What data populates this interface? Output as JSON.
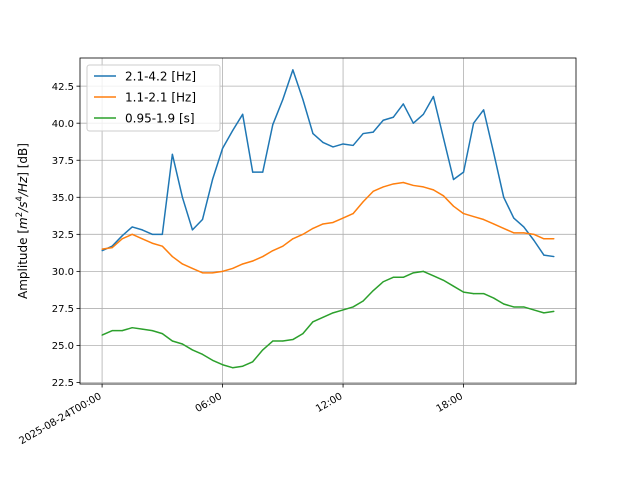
{
  "chart_data": {
    "type": "line",
    "title": "",
    "xlabel": "",
    "ylabel": "Amplitude [m²/s⁴/Hz] [dB]",
    "ylabel_parts": {
      "base": "Amplitude [",
      "m": "m",
      "sup1": "2",
      "s": "/s",
      "sup2": "4",
      "hz": "/Hz",
      "tail": "] [dB]"
    },
    "x_hours": [
      0,
      0.5,
      1,
      1.5,
      2,
      2.5,
      3,
      3.5,
      4,
      4.5,
      5,
      5.5,
      6,
      6.5,
      7,
      7.5,
      8,
      8.5,
      9,
      9.5,
      10,
      10.5,
      11,
      11.5,
      12,
      12.5,
      13,
      13.5,
      14,
      14.5,
      15,
      15.5,
      16,
      16.5,
      17,
      17.5,
      18,
      18.5,
      19,
      19.5,
      20,
      20.5,
      21,
      21.5,
      22,
      22.5
    ],
    "series": [
      {
        "name": "2.1-4.2 [Hz]",
        "color": "#1f77b4",
        "values": [
          31.4,
          31.7,
          32.4,
          33.0,
          32.8,
          32.5,
          32.5,
          37.9,
          35.0,
          32.8,
          33.5,
          36.2,
          38.3,
          39.5,
          40.6,
          36.7,
          36.7,
          39.9,
          41.6,
          43.6,
          41.6,
          39.3,
          38.7,
          38.4,
          38.6,
          38.5,
          39.3,
          39.4,
          40.2,
          40.4,
          41.3,
          40.0,
          40.6,
          41.8,
          39.0,
          36.2,
          36.7,
          40.0,
          40.9,
          38.0,
          35.0,
          33.6,
          33.0,
          32.1,
          31.1,
          31.0
        ]
      },
      {
        "name": "1.1-2.1 [Hz]",
        "color": "#ff7f0e",
        "values": [
          31.5,
          31.6,
          32.2,
          32.5,
          32.2,
          31.9,
          31.7,
          31.0,
          30.5,
          30.2,
          29.9,
          29.9,
          30.0,
          30.2,
          30.5,
          30.7,
          31.0,
          31.4,
          31.7,
          32.2,
          32.5,
          32.9,
          33.2,
          33.3,
          33.6,
          33.9,
          34.7,
          35.4,
          35.7,
          35.9,
          36.0,
          35.8,
          35.7,
          35.5,
          35.1,
          34.4,
          33.9,
          33.7,
          33.5,
          33.2,
          32.9,
          32.6,
          32.6,
          32.5,
          32.2,
          32.2
        ]
      },
      {
        "name": "0.95-1.9 [s]",
        "color": "#2ca02c",
        "values": [
          25.7,
          26.0,
          26.0,
          26.2,
          26.1,
          26.0,
          25.8,
          25.3,
          25.1,
          24.7,
          24.4,
          24.0,
          23.7,
          23.5,
          23.6,
          23.9,
          24.7,
          25.3,
          25.3,
          25.4,
          25.8,
          26.6,
          26.9,
          27.2,
          27.4,
          27.6,
          28.0,
          28.7,
          29.3,
          29.6,
          29.6,
          29.9,
          30.0,
          29.7,
          29.4,
          29.0,
          28.6,
          28.5,
          28.5,
          28.2,
          27.8,
          27.6,
          27.6,
          27.4,
          27.2,
          27.3
        ]
      }
    ],
    "xlim_hours": [
      -1.1,
      23.6
    ],
    "ylim": [
      22.4,
      44.4
    ],
    "x_ticks": [
      {
        "hours": 0,
        "label": "2025-08-24T00:00"
      },
      {
        "hours": 6,
        "label": "06:00"
      },
      {
        "hours": 12,
        "label": "12:00"
      },
      {
        "hours": 18,
        "label": "18:00"
      }
    ],
    "y_ticks": [
      {
        "value": 22.5,
        "label": "22.5"
      },
      {
        "value": 25.0,
        "label": "25.0"
      },
      {
        "value": 27.5,
        "label": "27.5"
      },
      {
        "value": 30.0,
        "label": "30.0"
      },
      {
        "value": 32.5,
        "label": "32.5"
      },
      {
        "value": 35.0,
        "label": "35.0"
      },
      {
        "value": 37.5,
        "label": "37.5"
      },
      {
        "value": 40.0,
        "label": "40.0"
      },
      {
        "value": 42.5,
        "label": "42.5"
      }
    ],
    "grid": true,
    "legend_position": "top-left"
  }
}
